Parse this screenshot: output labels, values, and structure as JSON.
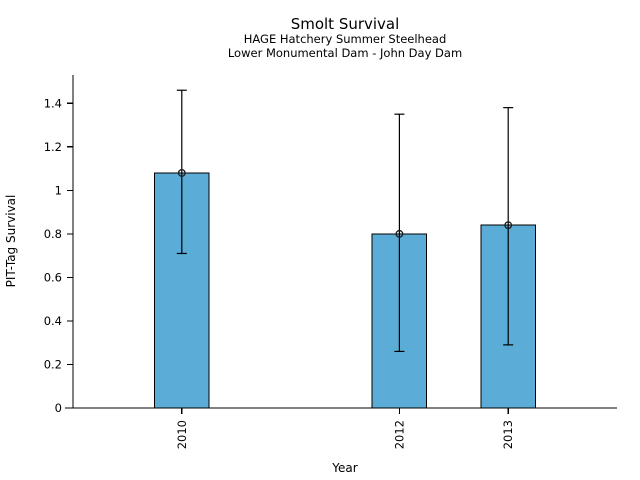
{
  "figure": {
    "background": "#ffffff"
  },
  "chart_data": {
    "type": "bar",
    "title": "Smolt Survival",
    "subtitle_line1": "HAGE Hatchery Summer Steelhead",
    "subtitle_line2": "Lower Monumental Dam - John Day Dam",
    "xlabel": "Year",
    "ylabel": "PIT-Tag Survival",
    "categories": [
      "2010",
      "2012",
      "2013"
    ],
    "x": [
      2010,
      2012,
      2013
    ],
    "values": [
      1.08,
      0.8,
      0.84
    ],
    "error_low": [
      0.71,
      0.26,
      0.29
    ],
    "error_high": [
      1.46,
      1.35,
      1.38
    ],
    "xlim": [
      2009,
      2014
    ],
    "ylim": [
      0,
      1.53
    ],
    "yticks": [
      0,
      0.2,
      0.4,
      0.6,
      0.8,
      1,
      1.2,
      1.4
    ],
    "ytick_labels": [
      "0",
      "0.2",
      "0.4",
      "0.6",
      "0.8",
      "1",
      "1.2",
      "1.4"
    ],
    "bar_width_years": 0.5,
    "grid": false,
    "legend": "none",
    "marker": "open-circle",
    "colors": {
      "bar_fill": "#5BACD6",
      "bar_edge": "#000000",
      "error_bar": "#000000",
      "marker_edge": "#1a1a1a",
      "axis": "#000000",
      "text": "#000000"
    }
  }
}
